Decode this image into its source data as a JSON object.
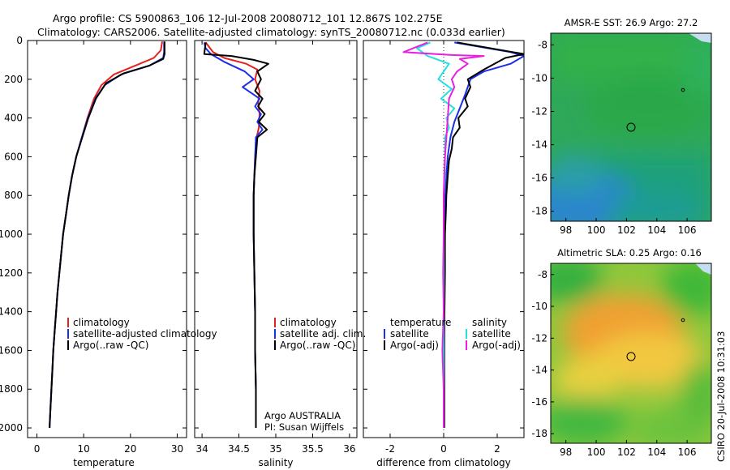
{
  "header": {
    "line1": "Argo profile: CS 5900863_106 12-Jul-2008 20080712_101 12.867S 102.275E",
    "line2": "Climatology: CARS2006. Satellite-adjusted climatology: synTS_20080712.nc (0.033d earlier)"
  },
  "side_caption": "CSIRO 20-Jul-2008 10:31:03",
  "colors": {
    "climatology": "#e8201c",
    "satellite": "#1c2ee8",
    "argo": "#000000",
    "sal_sat": "#26e0e0",
    "sal_argo": "#e820e0"
  },
  "chart_data": [
    {
      "type": "line",
      "xlabel": "temperature",
      "xlim": [
        -2,
        32
      ],
      "ylim": [
        2050,
        0
      ],
      "xticks": [
        0,
        10,
        20,
        30
      ],
      "yticks": [
        0,
        200,
        400,
        600,
        800,
        1000,
        1200,
        1400,
        1600,
        1800,
        2000
      ],
      "legend": [
        "climatology",
        "satellite-adjusted climatology",
        "Argo(..raw -QC)"
      ],
      "legend_position": "lower-right",
      "series": [
        {
          "name": "climatology",
          "color_key": "climatology",
          "points": [
            [
              26.8,
              5
            ],
            [
              26.5,
              50
            ],
            [
              25,
              90
            ],
            [
              21,
              130
            ],
            [
              16.5,
              175
            ],
            [
              13.8,
              230
            ],
            [
              12.2,
              300
            ],
            [
              10.8,
              400
            ],
            [
              9.6,
              500
            ],
            [
              8.4,
              600
            ],
            [
              7.5,
              700
            ],
            [
              6.8,
              800
            ],
            [
              6.2,
              900
            ],
            [
              5.6,
              1000
            ],
            [
              5.2,
              1100
            ],
            [
              4.8,
              1200
            ],
            [
              4.4,
              1300
            ],
            [
              4.1,
              1400
            ],
            [
              3.8,
              1500
            ],
            [
              3.5,
              1600
            ],
            [
              3.3,
              1700
            ],
            [
              3.1,
              1800
            ],
            [
              2.9,
              1900
            ],
            [
              2.7,
              2000
            ]
          ]
        },
        {
          "name": "satellite-adjusted climatology",
          "color_key": "satellite",
          "points": [
            [
              27.2,
              5
            ],
            [
              27.2,
              60
            ],
            [
              27,
              90
            ],
            [
              24,
              130
            ],
            [
              18,
              175
            ],
            [
              14.5,
              230
            ],
            [
              12.5,
              300
            ],
            [
              10.9,
              400
            ],
            [
              9.6,
              500
            ],
            [
              8.4,
              600
            ],
            [
              7.5,
              700
            ],
            [
              6.8,
              800
            ],
            [
              6.2,
              900
            ],
            [
              5.6,
              1000
            ],
            [
              5.2,
              1100
            ],
            [
              4.8,
              1200
            ],
            [
              4.4,
              1300
            ],
            [
              4.1,
              1400
            ],
            [
              3.8,
              1500
            ],
            [
              3.5,
              1600
            ],
            [
              3.3,
              1700
            ],
            [
              3.1,
              1800
            ],
            [
              2.9,
              1900
            ],
            [
              2.7,
              2000
            ]
          ]
        },
        {
          "name": "Argo(..raw -QC)",
          "color_key": "argo",
          "points": [
            [
              27.3,
              5
            ],
            [
              27.3,
              70
            ],
            [
              27,
              95
            ],
            [
              24,
              130
            ],
            [
              18.5,
              170
            ],
            [
              14.8,
              220
            ],
            [
              12.6,
              300
            ],
            [
              11,
              400
            ],
            [
              9.7,
              500
            ],
            [
              8.4,
              600
            ],
            [
              7.5,
              700
            ],
            [
              6.8,
              800
            ],
            [
              6.2,
              900
            ],
            [
              5.6,
              1000
            ],
            [
              5.2,
              1100
            ],
            [
              4.8,
              1200
            ],
            [
              4.4,
              1300
            ],
            [
              4.1,
              1400
            ],
            [
              3.8,
              1500
            ],
            [
              3.5,
              1600
            ],
            [
              3.3,
              1700
            ],
            [
              3.1,
              1800
            ],
            [
              2.9,
              1900
            ],
            [
              2.7,
              2000
            ]
          ]
        }
      ]
    },
    {
      "type": "line",
      "xlabel": "salinity",
      "xlim": [
        33.9,
        36.1
      ],
      "ylim": [
        2050,
        0
      ],
      "xticks": [
        34,
        34.5,
        35,
        35.5,
        36
      ],
      "yticks": [
        0,
        200,
        400,
        600,
        800,
        1000,
        1200,
        1400,
        1600,
        1800,
        2000
      ],
      "legend": [
        "climatology",
        "satellite adj. clim.",
        "Argo(..raw -QC)"
      ],
      "legend_position": "lower-right",
      "annotations": [
        "Argo AUSTRALIA",
        "PI: Susan Wijffels"
      ],
      "series": [
        {
          "name": "climatology",
          "color_key": "climatology",
          "points": [
            [
              34.05,
              10
            ],
            [
              34.15,
              60
            ],
            [
              34.3,
              90
            ],
            [
              34.6,
              120
            ],
            [
              34.75,
              150
            ],
            [
              34.72,
              200
            ],
            [
              34.78,
              260
            ],
            [
              34.76,
              320
            ],
            [
              34.78,
              380
            ],
            [
              34.77,
              450
            ],
            [
              34.74,
              500
            ],
            [
              34.72,
              600
            ],
            [
              34.71,
              700
            ],
            [
              34.7,
              800
            ],
            [
              34.7,
              900
            ],
            [
              34.7,
              1000
            ],
            [
              34.71,
              1200
            ],
            [
              34.72,
              1400
            ],
            [
              34.72,
              1600
            ],
            [
              34.73,
              1800
            ],
            [
              34.73,
              2000
            ]
          ]
        },
        {
          "name": "satellite adj. clim.",
          "color_key": "satellite",
          "points": [
            [
              34.03,
              10
            ],
            [
              34.05,
              40
            ],
            [
              34.12,
              70
            ],
            [
              34.3,
              110
            ],
            [
              34.58,
              160
            ],
            [
              34.7,
              200
            ],
            [
              34.55,
              240
            ],
            [
              34.78,
              300
            ],
            [
              34.72,
              340
            ],
            [
              34.8,
              380
            ],
            [
              34.75,
              420
            ],
            [
              34.82,
              460
            ],
            [
              34.73,
              500
            ],
            [
              34.72,
              600
            ],
            [
              34.71,
              700
            ],
            [
              34.7,
              800
            ],
            [
              34.7,
              900
            ],
            [
              34.7,
              1000
            ],
            [
              34.71,
              1200
            ],
            [
              34.72,
              1400
            ],
            [
              34.72,
              1600
            ],
            [
              34.73,
              1800
            ],
            [
              34.73,
              2000
            ]
          ]
        },
        {
          "name": "Argo(..raw -QC)",
          "color_key": "argo",
          "points": [
            [
              34.05,
              10
            ],
            [
              34.03,
              70
            ],
            [
              34.4,
              80
            ],
            [
              34.7,
              100
            ],
            [
              34.9,
              120
            ],
            [
              34.75,
              160
            ],
            [
              34.8,
              200
            ],
            [
              34.72,
              260
            ],
            [
              34.82,
              300
            ],
            [
              34.76,
              340
            ],
            [
              34.85,
              380
            ],
            [
              34.77,
              420
            ],
            [
              34.88,
              460
            ],
            [
              34.75,
              500
            ],
            [
              34.73,
              600
            ],
            [
              34.71,
              700
            ],
            [
              34.7,
              800
            ],
            [
              34.7,
              900
            ],
            [
              34.7,
              1000
            ],
            [
              34.71,
              1200
            ],
            [
              34.72,
              1400
            ],
            [
              34.72,
              1600
            ],
            [
              34.73,
              1800
            ],
            [
              34.73,
              2000
            ]
          ]
        }
      ]
    },
    {
      "type": "line",
      "xlabel": "difference from climatology",
      "xlim": [
        -3,
        3
      ],
      "ylim": [
        2050,
        0
      ],
      "xticks": [
        -2,
        0,
        2
      ],
      "yticks": [
        0,
        200,
        400,
        600,
        800,
        1000,
        1200,
        1400,
        1600,
        1800,
        2000
      ],
      "legend_headers": [
        "temperature",
        "salinity"
      ],
      "legend": [
        "satellite",
        "Argo(-adj)",
        "satellite",
        "Argo(-adj)"
      ],
      "legend_position": "lower-left",
      "series": [
        {
          "name": "satellite",
          "group": "temperature",
          "color_key": "satellite",
          "points": [
            [
              0.4,
              10
            ],
            [
              2.5,
              60
            ],
            [
              3,
              80
            ],
            [
              2.5,
              120
            ],
            [
              1.5,
              160
            ],
            [
              1.0,
              200
            ],
            [
              0.8,
              280
            ],
            [
              0.6,
              350
            ],
            [
              0.4,
              420
            ],
            [
              0.25,
              500
            ],
            [
              0.15,
              600
            ],
            [
              0.1,
              700
            ],
            [
              0.05,
              800
            ],
            [
              0.05,
              900
            ],
            [
              0.05,
              1000
            ],
            [
              0.03,
              1200
            ],
            [
              0.02,
              1400
            ],
            [
              0.02,
              1600
            ],
            [
              0.02,
              1800
            ],
            [
              0.02,
              2000
            ]
          ]
        },
        {
          "name": "Argo(-adj)",
          "group": "temperature",
          "color_key": "argo",
          "points": [
            [
              0.5,
              10
            ],
            [
              3,
              70
            ],
            [
              2.3,
              90
            ],
            [
              1.5,
              150
            ],
            [
              0.9,
              200
            ],
            [
              1.0,
              240
            ],
            [
              0.8,
              300
            ],
            [
              0.9,
              340
            ],
            [
              0.55,
              400
            ],
            [
              0.6,
              450
            ],
            [
              0.35,
              500
            ],
            [
              0.3,
              560
            ],
            [
              0.2,
              620
            ],
            [
              0.15,
              700
            ],
            [
              0.1,
              800
            ],
            [
              0.08,
              900
            ],
            [
              0.05,
              1000
            ],
            [
              0.05,
              1200
            ],
            [
              0.03,
              1400
            ],
            [
              0.02,
              1600
            ],
            [
              0.02,
              1800
            ],
            [
              0.02,
              2000
            ]
          ]
        },
        {
          "name": "satellite",
          "group": "salinity",
          "color_key": "sal_sat",
          "points": [
            [
              -0.5,
              10
            ],
            [
              -1.0,
              40
            ],
            [
              -0.6,
              80
            ],
            [
              0.2,
              120
            ],
            [
              0.0,
              160
            ],
            [
              -0.2,
              200
            ],
            [
              0.3,
              250
            ],
            [
              -0.1,
              300
            ],
            [
              0.4,
              350
            ],
            [
              0.1,
              400
            ],
            [
              0.2,
              450
            ],
            [
              0.05,
              500
            ],
            [
              0.05,
              600
            ],
            [
              0.05,
              700
            ],
            [
              0.0,
              800
            ],
            [
              0.0,
              900
            ],
            [
              0.0,
              1000
            ],
            [
              0.0,
              1200
            ],
            [
              0.0,
              1400
            ],
            [
              0.0,
              1600
            ],
            [
              0.0,
              1800
            ],
            [
              0.0,
              2000
            ]
          ]
        },
        {
          "name": "Argo(-adj)",
          "group": "salinity",
          "color_key": "sal_argo",
          "points": [
            [
              -0.6,
              10
            ],
            [
              -1.5,
              60
            ],
            [
              0.3,
              75
            ],
            [
              1.5,
              80
            ],
            [
              0.6,
              95
            ],
            [
              0.9,
              120
            ],
            [
              0.5,
              160
            ],
            [
              0.3,
              200
            ],
            [
              0.4,
              240
            ],
            [
              0.2,
              300
            ],
            [
              0.15,
              400
            ],
            [
              0.1,
              500
            ],
            [
              0.05,
              600
            ],
            [
              0.02,
              700
            ],
            [
              0.0,
              800
            ],
            [
              0.0,
              1000
            ],
            [
              -0.02,
              1200
            ],
            [
              0.0,
              1400
            ],
            [
              -0.05,
              1600
            ],
            [
              0.0,
              1800
            ],
            [
              0.0,
              2000
            ]
          ]
        }
      ]
    },
    {
      "type": "heatmap",
      "title": "AMSR-E SST: 26.9 Argo: 27.2",
      "xlim": [
        97,
        107.6
      ],
      "ylim": [
        -18.6,
        -7.3
      ],
      "xticks": [
        98,
        100,
        102,
        104,
        106
      ],
      "yticks": [
        -8,
        -10,
        -12,
        -14,
        -16,
        -18
      ],
      "float_marker": [
        102.275,
        -12.867
      ],
      "colormap": "green-to-blue (warmer green north, cooler blue south-west)"
    },
    {
      "type": "heatmap",
      "title": "Altimetric SLA: 0.25 Argo: 0.16",
      "xlim": [
        97,
        107.6
      ],
      "ylim": [
        -18.6,
        -7.3
      ],
      "xticks": [
        98,
        100,
        102,
        104,
        106
      ],
      "yticks": [
        -8,
        -10,
        -12,
        -14,
        -16,
        -18
      ],
      "float_marker": [
        102.275,
        -12.867
      ],
      "colormap": "green-yellow-orange (positive anomaly orange)"
    }
  ]
}
